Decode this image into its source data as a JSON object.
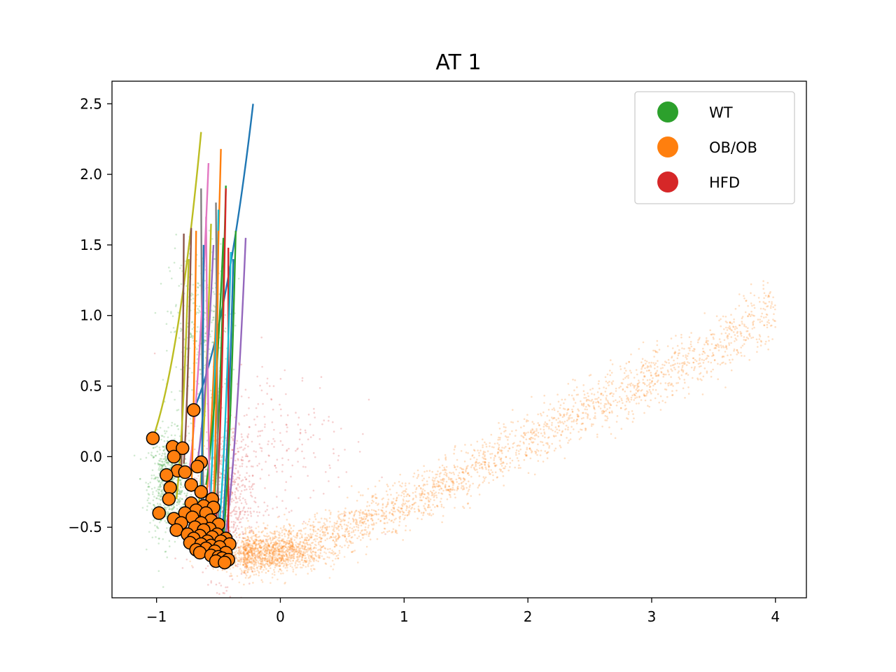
{
  "chart_data": {
    "type": "scatter",
    "title": "AT 1",
    "xlabel": "",
    "ylabel": "",
    "xlim": [
      -1.36,
      4.25
    ],
    "ylim": [
      -1.0,
      2.66
    ],
    "grid": false,
    "x_ticks": [
      {
        "value": -1,
        "label": "−1"
      },
      {
        "value": 0,
        "label": "0"
      },
      {
        "value": 1,
        "label": "1"
      },
      {
        "value": 2,
        "label": "2"
      },
      {
        "value": 3,
        "label": "3"
      },
      {
        "value": 4,
        "label": "4"
      }
    ],
    "y_ticks": [
      {
        "value": -0.5,
        "label": "−0.5"
      },
      {
        "value": 0.0,
        "label": "0.0"
      },
      {
        "value": 0.5,
        "label": "0.5"
      },
      {
        "value": 1.0,
        "label": "1.0"
      },
      {
        "value": 1.5,
        "label": "1.5"
      },
      {
        "value": 2.0,
        "label": "2.0"
      },
      {
        "value": 2.5,
        "label": "2.5"
      }
    ],
    "legend": {
      "placement": "top-right",
      "entries": [
        {
          "label": "WT",
          "color": "#2ca02c"
        },
        {
          "label": "OB/OB",
          "color": "#ff7f0e"
        },
        {
          "label": "HFD",
          "color": "#d62728"
        }
      ]
    },
    "colors": {
      "wt": "#2ca02c",
      "obob": "#ff7f0e",
      "hfd": "#d62728",
      "marker_edge": "#000000"
    },
    "background_clouds": [
      {
        "series": "WT",
        "center": [
          -0.9,
          -0.2
        ],
        "spread": [
          0.08,
          0.18
        ],
        "count": 700
      },
      {
        "series": "WT",
        "center": [
          -0.65,
          0.9
        ],
        "spread": [
          0.12,
          0.3
        ],
        "count": 350
      },
      {
        "series": "HFD",
        "center": [
          -0.45,
          -0.3
        ],
        "spread": [
          0.12,
          0.28
        ],
        "count": 700
      },
      {
        "series": "HFD",
        "center": [
          0.0,
          0.1
        ],
        "spread": [
          0.3,
          0.3
        ],
        "count": 200
      },
      {
        "series": "OB/OB",
        "center": [
          -0.1,
          -0.68
        ],
        "spread": [
          0.22,
          0.07
        ],
        "count": 900
      }
    ],
    "obob_trend": {
      "x": [
        -0.3,
        0.0,
        0.5,
        1.0,
        1.5,
        2.0,
        2.5,
        3.0,
        3.5,
        4.0
      ],
      "y": [
        -0.7,
        -0.65,
        -0.52,
        -0.35,
        -0.12,
        0.12,
        0.35,
        0.55,
        0.75,
        1.05
      ],
      "spread": 0.08,
      "count": 2600
    },
    "trajectories": [
      {
        "start": [
          -1.03,
          0.13
        ],
        "end": [
          -0.64,
          2.3
        ],
        "color": "#bcbd22"
      },
      {
        "start": [
          -0.7,
          0.33
        ],
        "end": [
          -0.22,
          2.5
        ],
        "color": "#1f77b4"
      },
      {
        "start": [
          -0.6,
          -0.3
        ],
        "end": [
          -0.48,
          2.18
        ],
        "color": "#ff7f0e"
      },
      {
        "start": [
          -0.62,
          -0.4
        ],
        "end": [
          -0.64,
          1.9
        ],
        "color": "#7f7f7f"
      },
      {
        "start": [
          -0.75,
          -0.2
        ],
        "end": [
          -0.58,
          2.08
        ],
        "color": "#e377c2"
      },
      {
        "start": [
          -0.55,
          -0.5
        ],
        "end": [
          -0.44,
          1.92
        ],
        "color": "#2ca02c"
      },
      {
        "start": [
          -0.8,
          -0.1
        ],
        "end": [
          -0.78,
          1.58
        ],
        "color": "#8c564b"
      },
      {
        "start": [
          -0.45,
          -0.6
        ],
        "end": [
          -0.28,
          1.55
        ],
        "color": "#9467bd"
      },
      {
        "start": [
          -0.52,
          -0.45
        ],
        "end": [
          -0.44,
          1.9
        ],
        "color": "#d62728"
      },
      {
        "start": [
          -0.58,
          -0.55
        ],
        "end": [
          -0.5,
          1.75
        ],
        "color": "#17becf"
      },
      {
        "start": [
          -0.66,
          -0.35
        ],
        "end": [
          -0.56,
          1.65
        ],
        "color": "#bcbd22"
      },
      {
        "start": [
          -0.48,
          -0.65
        ],
        "end": [
          -0.38,
          1.4
        ],
        "color": "#1f77b4"
      },
      {
        "start": [
          -0.72,
          -0.25
        ],
        "end": [
          -0.68,
          1.6
        ],
        "color": "#ff7f0e"
      },
      {
        "start": [
          -0.5,
          -0.7
        ],
        "end": [
          -0.52,
          1.8
        ],
        "color": "#7f7f7f"
      },
      {
        "start": [
          -0.6,
          -0.2
        ],
        "end": [
          -0.46,
          1.55
        ],
        "color": "#2ca02c"
      },
      {
        "start": [
          -0.78,
          -0.05
        ],
        "end": [
          -0.72,
          1.62
        ],
        "color": "#8c564b"
      },
      {
        "start": [
          -0.42,
          -0.72
        ],
        "end": [
          -0.42,
          1.48
        ],
        "color": "#d62728"
      },
      {
        "start": [
          -0.56,
          -0.62
        ],
        "end": [
          -0.6,
          1.7
        ],
        "color": "#e377c2"
      },
      {
        "start": [
          -0.68,
          -0.1
        ],
        "end": [
          -0.54,
          1.5
        ],
        "color": "#9467bd"
      },
      {
        "start": [
          -0.5,
          -0.55
        ],
        "end": [
          -0.4,
          1.45
        ],
        "color": "#17becf"
      },
      {
        "start": [
          -0.64,
          -0.45
        ],
        "end": [
          -0.62,
          1.5
        ],
        "color": "#1f77b4"
      },
      {
        "start": [
          -0.54,
          -0.35
        ],
        "end": [
          -0.5,
          1.6
        ],
        "color": "#ff7f0e"
      },
      {
        "start": [
          -0.84,
          -0.3
        ],
        "end": [
          -0.74,
          1.4
        ],
        "color": "#bcbd22"
      },
      {
        "start": [
          -0.46,
          -0.58
        ],
        "end": [
          -0.36,
          1.6
        ],
        "color": "#2ca02c"
      }
    ],
    "endpoints": [
      [
        -1.03,
        0.13
      ],
      [
        -0.7,
        0.33
      ],
      [
        -0.87,
        0.07
      ],
      [
        -0.79,
        0.06
      ],
      [
        -0.86,
        0.0
      ],
      [
        -0.64,
        -0.04
      ],
      [
        -0.67,
        -0.07
      ],
      [
        -0.83,
        -0.1
      ],
      [
        -0.77,
        -0.11
      ],
      [
        -0.92,
        -0.13
      ],
      [
        -0.72,
        -0.2
      ],
      [
        -0.89,
        -0.22
      ],
      [
        -0.64,
        -0.25
      ],
      [
        -0.9,
        -0.3
      ],
      [
        -0.72,
        -0.33
      ],
      [
        -0.55,
        -0.3
      ],
      [
        -0.62,
        -0.35
      ],
      [
        -0.54,
        -0.36
      ],
      [
        -0.68,
        -0.38
      ],
      [
        -0.6,
        -0.4
      ],
      [
        -0.98,
        -0.4
      ],
      [
        -0.77,
        -0.4
      ],
      [
        -0.71,
        -0.43
      ],
      [
        -0.86,
        -0.44
      ],
      [
        -0.56,
        -0.45
      ],
      [
        -0.64,
        -0.47
      ],
      [
        -0.8,
        -0.47
      ],
      [
        -0.5,
        -0.48
      ],
      [
        -0.69,
        -0.5
      ],
      [
        -0.57,
        -0.51
      ],
      [
        -0.62,
        -0.52
      ],
      [
        -0.84,
        -0.52
      ],
      [
        -0.75,
        -0.55
      ],
      [
        -0.51,
        -0.55
      ],
      [
        -0.65,
        -0.56
      ],
      [
        -0.55,
        -0.57
      ],
      [
        -0.44,
        -0.58
      ],
      [
        -0.7,
        -0.58
      ],
      [
        -0.59,
        -0.6
      ],
      [
        -0.48,
        -0.6
      ],
      [
        -0.73,
        -0.61
      ],
      [
        -0.64,
        -0.62
      ],
      [
        -0.41,
        -0.62
      ],
      [
        -0.56,
        -0.63
      ],
      [
        -0.49,
        -0.64
      ],
      [
        -0.6,
        -0.65
      ],
      [
        -0.68,
        -0.66
      ],
      [
        -0.53,
        -0.67
      ],
      [
        -0.44,
        -0.68
      ],
      [
        -0.65,
        -0.68
      ],
      [
        -0.56,
        -0.7
      ],
      [
        -0.5,
        -0.71
      ],
      [
        -0.47,
        -0.72
      ],
      [
        -0.42,
        -0.73
      ],
      [
        -0.52,
        -0.74
      ],
      [
        -0.45,
        -0.75
      ]
    ]
  }
}
